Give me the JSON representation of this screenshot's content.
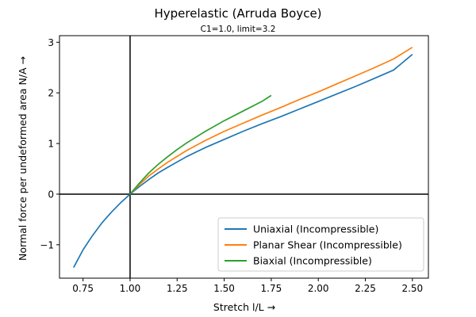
{
  "chart_data": {
    "type": "line",
    "title": "Hyperelastic (Arruda Boyce)",
    "subtitle": "C1=1.0, limit=3.2",
    "xlabel": "Stretch l/L  →",
    "ylabel": "Normal force per undeformed area N/A  →",
    "xlim": [
      0.625,
      2.585
    ],
    "ylim": [
      -1.66,
      3.13
    ],
    "xticks": [
      0.75,
      1.0,
      1.25,
      1.5,
      1.75,
      2.0,
      2.25,
      2.5
    ],
    "xtick_labels": [
      "0.75",
      "1.00",
      "1.25",
      "1.50",
      "1.75",
      "2.00",
      "2.25",
      "2.50"
    ],
    "yticks": [
      -1,
      0,
      1,
      2,
      3
    ],
    "ytick_labels": [
      "−1",
      "0",
      "1",
      "2",
      "3"
    ],
    "grid": false,
    "reference_lines": {
      "x": 1.0,
      "y": 0
    },
    "legend": {
      "placement": "lower-right",
      "entries": [
        "Uniaxial (Incompressible)",
        "Planar Shear (Incompressible)",
        "Biaxial (Incompressible)"
      ]
    },
    "series": [
      {
        "name": "Uniaxial (Incompressible)",
        "color": "#1f77b4",
        "x": [
          0.7,
          0.75,
          0.8,
          0.85,
          0.9,
          0.95,
          1.0,
          1.05,
          1.1,
          1.15,
          1.2,
          1.3,
          1.4,
          1.5,
          1.6,
          1.7,
          1.8,
          1.9,
          2.0,
          2.1,
          2.2,
          2.3,
          2.4,
          2.5
        ],
        "y": [
          -1.45,
          -1.1,
          -0.82,
          -0.57,
          -0.36,
          -0.17,
          0.0,
          0.15,
          0.29,
          0.42,
          0.53,
          0.74,
          0.92,
          1.08,
          1.24,
          1.39,
          1.53,
          1.68,
          1.83,
          1.98,
          2.13,
          2.29,
          2.45,
          2.76
        ]
      },
      {
        "name": "Planar Shear (Incompressible)",
        "color": "#ff7f0e",
        "x": [
          1.0,
          1.05,
          1.1,
          1.15,
          1.2,
          1.3,
          1.4,
          1.5,
          1.6,
          1.7,
          1.8,
          1.9,
          2.0,
          2.1,
          2.2,
          2.3,
          2.4,
          2.5
        ],
        "y": [
          0.0,
          0.19,
          0.36,
          0.5,
          0.63,
          0.86,
          1.06,
          1.24,
          1.4,
          1.56,
          1.71,
          1.87,
          2.02,
          2.18,
          2.34,
          2.5,
          2.67,
          2.9
        ]
      },
      {
        "name": "Biaxial (Incompressible)",
        "color": "#2ca02c",
        "x": [
          1.0,
          1.05,
          1.1,
          1.15,
          1.2,
          1.25,
          1.3,
          1.4,
          1.5,
          1.6,
          1.7,
          1.75
        ],
        "y": [
          0.0,
          0.22,
          0.42,
          0.59,
          0.74,
          0.88,
          1.01,
          1.24,
          1.45,
          1.64,
          1.83,
          1.95
        ]
      }
    ]
  }
}
